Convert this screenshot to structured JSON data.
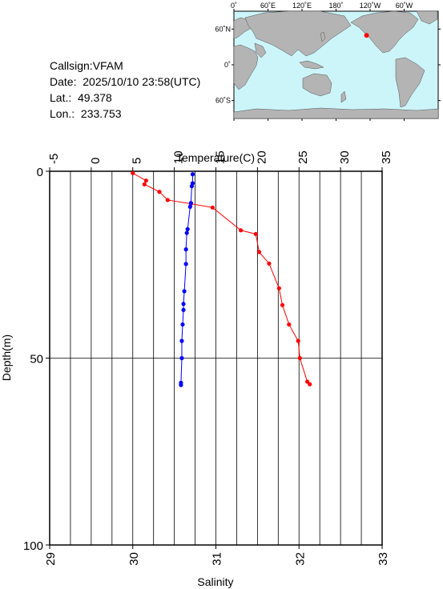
{
  "info": {
    "callsign": "Callsign:VFAM",
    "date": "Date:  2025/10/10 23:58(UTC)",
    "lat": "Lat.:  49.378",
    "lon": "Lon.:  233.753"
  },
  "map": {
    "lon_labels": [
      "0˚",
      "60˚E",
      "120˚E",
      "180˚",
      "120˚W",
      "60˚W"
    ],
    "lat_labels": [
      "60˚N",
      "0˚",
      "60˚S"
    ],
    "ocean_color": "#ccf5fa",
    "land_color": "#b4b4b4",
    "marker": {
      "lon": 233.753,
      "lat": 49.378,
      "color": "#ff0000"
    }
  },
  "chart_data": {
    "type": "line",
    "ylabel": "Depth(m)",
    "ylim": [
      0,
      100
    ],
    "y_inverted": true,
    "y_ticks": [
      "0",
      "50",
      "100"
    ],
    "top_axis": {
      "label": "Temperature(C)",
      "range": [
        -5,
        35
      ],
      "ticks": [
        "-5",
        "0",
        "5",
        "10",
        "15",
        "20",
        "25",
        "30",
        "35"
      ]
    },
    "bottom_axis": {
      "label": "Salinity",
      "range": [
        29,
        33
      ],
      "ticks": [
        "29",
        "30",
        "31",
        "32",
        "33"
      ]
    },
    "grid": true,
    "series": [
      {
        "axis": "temperature",
        "color": "#ff0000",
        "points": [
          [
            5.0,
            0.5
          ],
          [
            6.6,
            2.5
          ],
          [
            6.4,
            3.5
          ],
          [
            8.2,
            5.5
          ],
          [
            9.2,
            7.7
          ],
          [
            12.0,
            8.7
          ],
          [
            14.6,
            9.7
          ],
          [
            18.0,
            15.8
          ],
          [
            19.8,
            16.8
          ],
          [
            20.2,
            21.6
          ],
          [
            21.4,
            24.7
          ],
          [
            22.6,
            31.3
          ],
          [
            23.0,
            35.8
          ],
          [
            23.8,
            41.0
          ],
          [
            24.9,
            45.4
          ],
          [
            25.1,
            50.0
          ],
          [
            26.0,
            56.3
          ],
          [
            26.3,
            57.0
          ]
        ]
      },
      {
        "axis": "salinity",
        "color": "#0000ff",
        "points": [
          [
            30.72,
            0.8
          ],
          [
            30.72,
            3.2
          ],
          [
            30.71,
            4.0
          ],
          [
            30.7,
            8.5
          ],
          [
            30.69,
            9.5
          ],
          [
            30.66,
            15.5
          ],
          [
            30.65,
            16.5
          ],
          [
            30.64,
            20.9
          ],
          [
            30.64,
            24.8
          ],
          [
            30.62,
            32.1
          ],
          [
            30.61,
            35.5
          ],
          [
            30.61,
            37.1
          ],
          [
            30.6,
            41.0
          ],
          [
            30.59,
            45.4
          ],
          [
            30.59,
            50.0
          ],
          [
            30.58,
            56.6
          ],
          [
            30.58,
            57.2
          ]
        ]
      }
    ]
  }
}
